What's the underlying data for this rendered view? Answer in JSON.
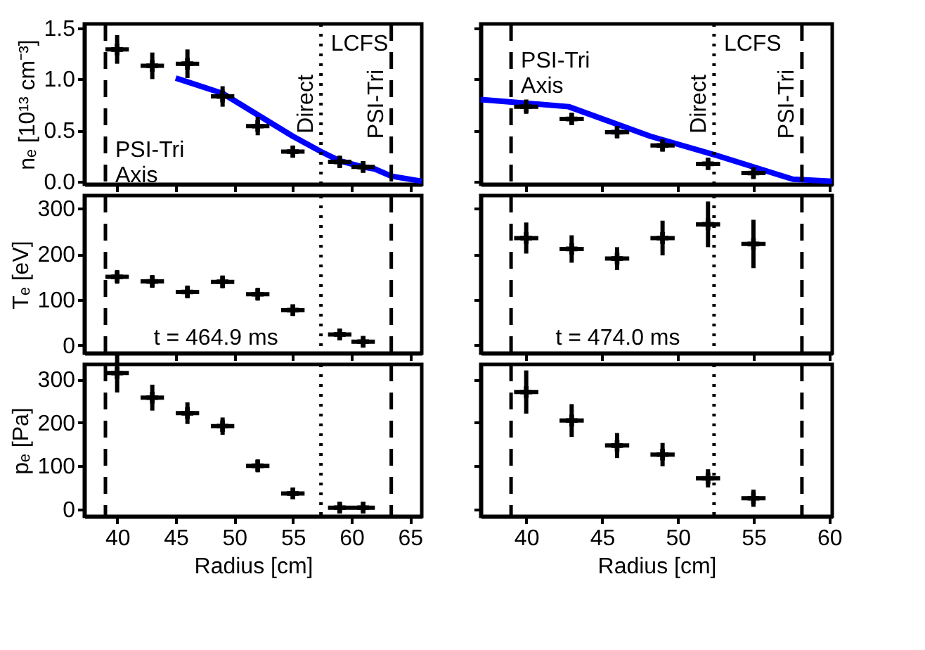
{
  "chart_data": [
    {
      "type": "scatter",
      "ylabel": "nₑ [10¹³ cm⁻³]",
      "xlim": [
        37.2,
        66
      ],
      "xticks": [
        40,
        45,
        50,
        55,
        60,
        65
      ],
      "ylim": [
        -0.03,
        1.54
      ],
      "yticks": [
        {
          "value": 0,
          "label": "0.0"
        },
        {
          "value": 0.5,
          "label": "0.5"
        },
        {
          "value": 1,
          "label": "1.0"
        },
        {
          "value": 1.5,
          "label": "1.5"
        }
      ],
      "tick_labels": "y",
      "series": [
        {
          "type": "scatter",
          "marker": "cross",
          "color": "#000000",
          "x": [
            40,
            43,
            46,
            49,
            52,
            55,
            59,
            61
          ],
          "values": [
            1.29,
            1.13,
            1.15,
            0.83,
            0.54,
            0.29,
            0.19,
            0.14
          ],
          "errors": [
            0.14,
            0.13,
            0.14,
            0.1,
            0.09,
            0.06,
            0.06,
            0.05
          ],
          "xerrors": [
            1,
            1,
            1,
            1,
            1,
            1,
            1,
            1
          ]
        },
        {
          "type": "line",
          "color": "#0000ff",
          "x": [
            45,
            49,
            52,
            55,
            57.4,
            59,
            61,
            62,
            63.4,
            66
          ],
          "values": [
            1.01,
            0.86,
            0.65,
            0.44,
            0.29,
            0.2,
            0.14,
            0.12,
            0.05,
            0.0
          ]
        }
      ],
      "ref_lines": [
        {
          "axis": "x",
          "value": 39,
          "line_style": "dashed"
        },
        {
          "axis": "x",
          "value": 57.4,
          "label": "Direct",
          "line_style": "dotted"
        },
        {
          "axis": "x",
          "value": 63.4,
          "label": "PSI-Tri",
          "line_style": "dashed"
        }
      ],
      "annotations": [
        {
          "text": "LCFS",
          "x": 57.4,
          "y": 1.35
        },
        {
          "text": "PSI-Tri\nAxis",
          "x": 39,
          "y": 0.31
        }
      ]
    },
    {
      "type": "scatter",
      "xlim": [
        37,
        60.2
      ],
      "xticks": [
        40,
        45,
        50,
        55,
        60
      ],
      "ylim": [
        -0.03,
        1.54
      ],
      "yticks": [
        0,
        0.5,
        1,
        1.5
      ],
      "tick_labels": false,
      "series": [
        {
          "type": "scatter",
          "marker": "cross",
          "color": "#000000",
          "x": [
            40,
            43,
            46,
            49,
            52,
            55
          ],
          "values": [
            0.73,
            0.61,
            0.48,
            0.35,
            0.17,
            0.08
          ],
          "errors": [
            0.07,
            0.06,
            0.06,
            0.06,
            0.06,
            0.05
          ],
          "xerrors": [
            0.8,
            0.8,
            0.8,
            0.8,
            0.8,
            0.8
          ]
        },
        {
          "type": "line",
          "color": "#0000ff",
          "x": [
            37,
            42.8,
            48.2,
            52.4,
            57.6,
            60.2
          ],
          "values": [
            0.8,
            0.73,
            0.44,
            0.26,
            0.02,
            0.0
          ]
        }
      ],
      "ref_lines": [
        {
          "axis": "x",
          "value": 39,
          "line_style": "dashed"
        },
        {
          "axis": "x",
          "value": 52.4,
          "label": "Direct",
          "line_style": "dotted"
        },
        {
          "axis": "x",
          "value": 58.2,
          "label": "PSI-Tri",
          "line_style": "dashed"
        }
      ],
      "annotations": [
        {
          "text": "LCFS",
          "x": 52.4,
          "y": 1.35
        },
        {
          "text": "PSI-Tri\nAxis",
          "x": 39,
          "y": 1.18
        }
      ]
    },
    {
      "type": "scatter",
      "ylabel": "Tₑ [eV]",
      "xlim": [
        37.2,
        66
      ],
      "xticks": [
        40,
        45,
        50,
        55,
        60,
        65
      ],
      "ylim": [
        -17,
        328
      ],
      "yticks": [
        0,
        100,
        200,
        300
      ],
      "tick_labels": "y",
      "series": [
        {
          "type": "scatter",
          "marker": "cross",
          "color": "#000000",
          "x": [
            40,
            43,
            46,
            49,
            52,
            55,
            59,
            61
          ],
          "values": [
            150,
            140,
            117,
            139,
            112,
            77,
            24,
            8
          ],
          "errors": [
            15,
            14,
            14,
            14,
            14,
            12,
            10,
            10
          ],
          "xerrors": [
            1,
            1,
            1,
            1,
            1,
            1,
            1,
            1
          ]
        }
      ],
      "ref_lines": [
        {
          "axis": "x",
          "value": 39,
          "line_style": "dashed"
        },
        {
          "axis": "x",
          "value": 57.4,
          "line_style": "dotted"
        },
        {
          "axis": "x",
          "value": 63.4,
          "line_style": "dashed"
        }
      ],
      "annotations": [
        "t = 464.9 ms"
      ]
    },
    {
      "type": "scatter",
      "xlim": [
        37,
        60.2
      ],
      "xticks": [
        40,
        45,
        50,
        55,
        60
      ],
      "ylim": [
        -17,
        328
      ],
      "yticks": [
        0,
        100,
        200,
        300
      ],
      "tick_labels": false,
      "series": [
        {
          "type": "scatter",
          "marker": "cross",
          "color": "#000000",
          "x": [
            40,
            43,
            46,
            49,
            52,
            55
          ],
          "values": [
            235,
            211,
            190,
            235,
            265,
            222
          ],
          "errors": [
            34,
            30,
            25,
            38,
            50,
            53
          ],
          "xerrors": [
            0.8,
            0.8,
            0.8,
            0.8,
            0.8,
            0.8
          ]
        }
      ],
      "ref_lines": [
        {
          "axis": "x",
          "value": 39,
          "line_style": "dashed"
        },
        {
          "axis": "x",
          "value": 52.4,
          "line_style": "dotted"
        },
        {
          "axis": "x",
          "value": 58.2,
          "line_style": "dashed"
        }
      ],
      "annotations": [
        "t = 474.0 ms"
      ]
    },
    {
      "type": "scatter",
      "xlabel": "Radius [cm]",
      "ylabel": "pₑ [Pa]",
      "xlim": [
        37.2,
        66
      ],
      "xticks": [
        40,
        45,
        50,
        55,
        60,
        65
      ],
      "ylim": [
        -17,
        335
      ],
      "yticks": [
        0,
        100,
        200,
        300
      ],
      "series": [
        {
          "type": "scatter",
          "marker": "cross",
          "color": "#000000",
          "x": [
            40,
            43,
            46,
            49,
            52,
            55,
            59,
            61
          ],
          "values": [
            315,
            258,
            222,
            192,
            100,
            36,
            3,
            3
          ],
          "errors": [
            45,
            30,
            25,
            20,
            15,
            12,
            10,
            10
          ],
          "xerrors": [
            1,
            1,
            1,
            1,
            1,
            1,
            1,
            1
          ]
        }
      ],
      "ref_lines": [
        {
          "axis": "x",
          "value": 39,
          "line_style": "dashed"
        },
        {
          "axis": "x",
          "value": 57.4,
          "line_style": "dotted"
        },
        {
          "axis": "x",
          "value": 63.4,
          "line_style": "dashed"
        }
      ]
    },
    {
      "type": "scatter",
      "xlabel": "Radius [cm]",
      "xlim": [
        37,
        60.2
      ],
      "xticks": [
        40,
        45,
        50,
        55,
        60
      ],
      "ylim": [
        -17,
        335
      ],
      "yticks": [
        0,
        100,
        200,
        300
      ],
      "tick_labels": "x",
      "series": [
        {
          "type": "scatter",
          "marker": "cross",
          "color": "#000000",
          "x": [
            40,
            43,
            46,
            49,
            52,
            55
          ],
          "values": [
            271,
            205,
            147,
            126,
            71,
            25
          ],
          "errors": [
            50,
            38,
            29,
            27,
            21,
            20
          ],
          "xerrors": [
            0.8,
            0.8,
            0.8,
            0.8,
            0.8,
            0.8
          ]
        }
      ],
      "ref_lines": [
        {
          "axis": "x",
          "value": 39,
          "line_style": "dashed"
        },
        {
          "axis": "x",
          "value": 52.4,
          "line_style": "dotted"
        },
        {
          "axis": "x",
          "value": 58.2,
          "line_style": "dashed"
        }
      ]
    }
  ]
}
